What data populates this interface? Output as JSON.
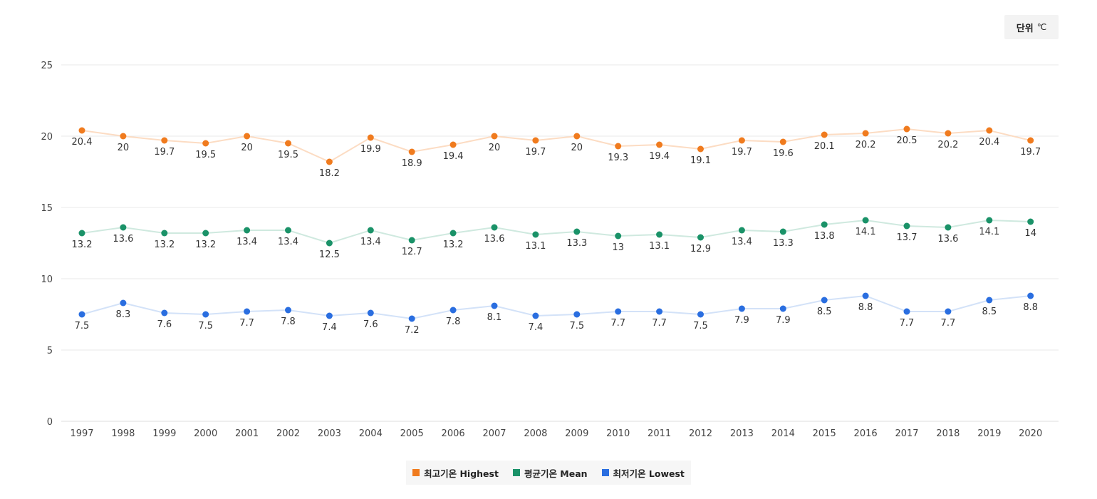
{
  "unit": {
    "label": "단위",
    "symbol": "℃"
  },
  "chart_data": {
    "type": "line",
    "title": "",
    "xlabel": "",
    "ylabel": "",
    "ylim": [
      0,
      25
    ],
    "yticks": [
      0,
      5,
      10,
      15,
      20,
      25
    ],
    "grid": true,
    "legend_position": "bottom-center",
    "categories": [
      "1997",
      "1998",
      "1999",
      "2000",
      "2001",
      "2002",
      "2003",
      "2004",
      "2005",
      "2006",
      "2007",
      "2008",
      "2009",
      "2010",
      "2011",
      "2012",
      "2013",
      "2014",
      "2015",
      "2016",
      "2017",
      "2018",
      "2019",
      "2020"
    ],
    "series": [
      {
        "name": "최고기온 Highest",
        "color": "#f07b1e",
        "line_color": "#fcdcc3",
        "values": [
          20.4,
          20,
          19.7,
          19.5,
          20,
          19.5,
          18.2,
          19.9,
          18.9,
          19.4,
          20,
          19.7,
          20,
          19.3,
          19.4,
          19.1,
          19.7,
          19.6,
          20.1,
          20.2,
          20.5,
          20.2,
          20.4,
          19.7
        ]
      },
      {
        "name": "평균기온 Mean",
        "color": "#1a9268",
        "line_color": "#cfe9df",
        "values": [
          13.2,
          13.6,
          13.2,
          13.2,
          13.4,
          13.4,
          12.5,
          13.4,
          12.7,
          13.2,
          13.6,
          13.1,
          13.3,
          13,
          13.1,
          12.9,
          13.4,
          13.3,
          13.8,
          14.1,
          13.7,
          13.6,
          14.1,
          14
        ]
      },
      {
        "name": "최저기온 Lowest",
        "color": "#2a6ee0",
        "line_color": "#d3e2f8",
        "values": [
          7.5,
          8.3,
          7.6,
          7.5,
          7.7,
          7.8,
          7.4,
          7.6,
          7.2,
          7.8,
          8.1,
          7.4,
          7.5,
          7.7,
          7.7,
          7.5,
          7.9,
          7.9,
          8.5,
          8.8,
          7.7,
          7.7,
          8.5,
          8.8
        ]
      }
    ]
  }
}
